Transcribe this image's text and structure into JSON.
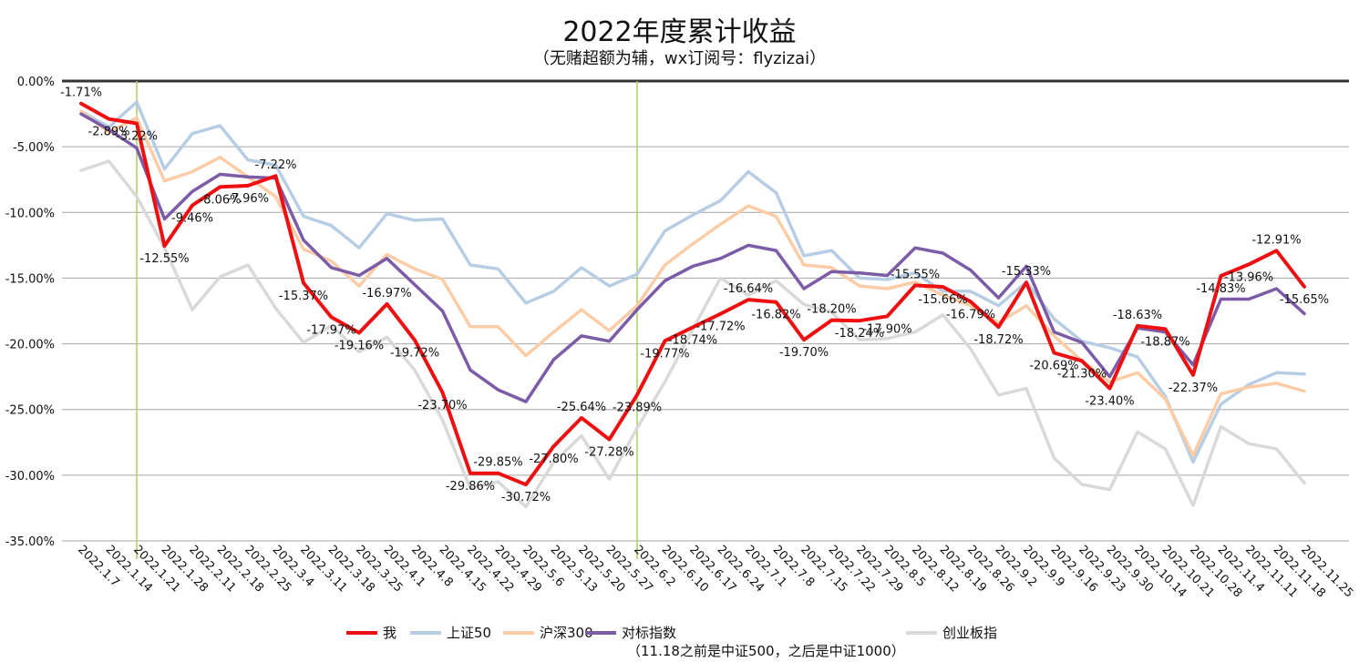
{
  "title": "2022年度累计收益",
  "subtitle": "（无赌超额为辅，wx订阅号：flyzizai）",
  "legend_note": "（11.18之前是中证500，之后是中证1000）",
  "chart_data": {
    "type": "line",
    "title": "2022年度累计收益",
    "subtitle": "（无赌超额为辅，wx订阅号：flyzizai）",
    "categories": [
      "2022.1.7",
      "2022.1.14",
      "2022.1.21",
      "2022.1.28",
      "2022.2.11",
      "2022.2.18",
      "2022.2.25",
      "2022.3.4",
      "2022.3.11",
      "2022.3.18",
      "2022.3.25",
      "2022.4.1",
      "2022.4.8",
      "2022.4.15",
      "2022.4.22",
      "2022.4.29",
      "2022.5.6",
      "2022.5.13",
      "2022.5.20",
      "2022.5.27",
      "2022.6.2",
      "2022.6.10",
      "2022.6.17",
      "2022.6.24",
      "2022.7.1",
      "2022.7.8",
      "2022.7.15",
      "2022.7.22",
      "2022.7.29",
      "2022.8.5",
      "2022.8.12",
      "2022.8.19",
      "2022.8.26",
      "2022.9.2",
      "2022.9.9",
      "2022.9.16",
      "2022.9.23",
      "2022.9.30",
      "2022.10.14",
      "2022.10.21",
      "2022.10.28",
      "2022.11.4",
      "2022.11.11",
      "2022.11.18",
      "2022.11.25"
    ],
    "y_ticks": [
      "0.00%",
      "-5.00%",
      "-10.00%",
      "-15.00%",
      "-20.00%",
      "-25.00%",
      "-30.00%",
      "-35.00%"
    ],
    "ylim": [
      -35,
      0
    ],
    "markers": [
      {
        "x_index": 2,
        "color": "#a8d060"
      },
      {
        "x_index": 20,
        "color": "#a8d060"
      }
    ],
    "series": [
      {
        "name": "创业板指",
        "color": "#d9d9d9",
        "width": 3.5,
        "values": [
          -6.8,
          -6.1,
          -8.8,
          -12.7,
          -17.4,
          -14.9,
          -14.0,
          -17.3,
          -19.9,
          -18.6,
          -20.6,
          -19.5,
          -22.0,
          -25.8,
          -31.0,
          -30.5,
          -32.4,
          -29.0,
          -27.0,
          -30.3,
          -26.4,
          -22.9,
          -18.9,
          -15.0,
          -16.3,
          -15.2,
          -17.0,
          -17.6,
          -19.7,
          -19.6,
          -19.1,
          -17.8,
          -20.4,
          -23.9,
          -23.4,
          -28.7,
          -30.7,
          -31.1,
          -26.7,
          -28.0,
          -32.3,
          -26.3,
          -27.6,
          -28.0,
          -30.6
        ]
      },
      {
        "name": "上证50",
        "color": "#b7cde4",
        "width": 3.5,
        "values": [
          -2.3,
          -3.5,
          -1.6,
          -6.7,
          -4.0,
          -3.4,
          -6.0,
          -6.4,
          -10.3,
          -11.0,
          -12.7,
          -10.1,
          -10.6,
          -10.5,
          -14.0,
          -14.3,
          -16.9,
          -16.0,
          -14.2,
          -15.6,
          -14.7,
          -11.4,
          -10.2,
          -9.1,
          -6.9,
          -8.5,
          -13.3,
          -12.9,
          -15.0,
          -15.1,
          -14.6,
          -16.0,
          -16.0,
          -17.1,
          -15.3,
          -18.1,
          -19.8,
          -20.3,
          -21.0,
          -24.0,
          -29.0,
          -24.6,
          -23.1,
          -22.2,
          -22.3
        ]
      },
      {
        "name": "沪深300",
        "color": "#fbcca6",
        "width": 3.5,
        "values": [
          -2.3,
          -3.9,
          -2.8,
          -7.6,
          -6.9,
          -5.8,
          -7.3,
          -8.8,
          -12.8,
          -13.7,
          -15.6,
          -13.2,
          -14.3,
          -15.1,
          -18.7,
          -18.7,
          -20.9,
          -19.1,
          -17.4,
          -19.0,
          -17.1,
          -14.0,
          -12.4,
          -10.9,
          -9.5,
          -10.3,
          -14.0,
          -14.2,
          -15.6,
          -15.8,
          -15.3,
          -16.3,
          -17.1,
          -18.4,
          -17.1,
          -19.4,
          -21.3,
          -22.9,
          -22.2,
          -24.2,
          -28.5,
          -23.8,
          -23.3,
          -23.0,
          -23.6
        ]
      },
      {
        "name": "对标指数",
        "color": "#7c5ca6",
        "width": 3.5,
        "values": [
          -2.5,
          -3.7,
          -5.1,
          -10.5,
          -8.4,
          -7.1,
          -7.3,
          -7.4,
          -12.1,
          -14.2,
          -14.8,
          -13.5,
          -15.5,
          -17.5,
          -22.0,
          -23.5,
          -24.4,
          -21.2,
          -19.4,
          -19.8,
          -17.4,
          -15.2,
          -14.1,
          -13.5,
          -12.5,
          -12.9,
          -15.8,
          -14.5,
          -14.6,
          -14.8,
          -12.7,
          -13.1,
          -14.4,
          -16.5,
          -14.1,
          -19.1,
          -19.9,
          -22.5,
          -18.8,
          -19.1,
          -21.6,
          -16.6,
          -16.6,
          -15.8,
          -17.7
        ]
      },
      {
        "name": "我",
        "color": "#ee1010",
        "width": 4,
        "values": [
          -1.71,
          -2.89,
          -3.22,
          -12.55,
          -9.46,
          -8.06,
          -7.96,
          -7.22,
          -15.37,
          -17.97,
          -19.16,
          -16.97,
          -19.72,
          -23.7,
          -29.86,
          -29.85,
          -30.72,
          -27.8,
          -25.64,
          -27.28,
          -23.89,
          -19.77,
          -18.74,
          -17.72,
          -16.64,
          -16.82,
          -19.7,
          -18.2,
          -18.24,
          -17.9,
          -15.55,
          -15.66,
          -16.79,
          -18.72,
          -15.33,
          -20.69,
          -21.3,
          -23.4,
          -18.63,
          -18.87,
          -22.37,
          -14.83,
          -13.96,
          -12.91,
          -15.65
        ],
        "data_labels": [
          "-1.71%",
          "-2.89%",
          "-3.22%",
          "-12.55%",
          "-9.46%",
          "-8.06%",
          "-7.96%",
          "-7.22%",
          "-15.37%",
          "-17.97%",
          "-19.16%",
          "-16.97%",
          "-19.72%",
          "-23.70%",
          "-29.86%",
          "-29.85%",
          "-30.72%",
          "-27.80%",
          "-25.64%",
          "-27.28%",
          "-23.89%",
          "-19.77%",
          "-18.74%",
          "-17.72%",
          "-16.64%",
          "-16.82%",
          "-19.70%",
          "-18.20%",
          "-18.24%",
          "-17.90%",
          "-15.55%",
          "-15.66%",
          "-16.79%",
          "-18.72%",
          "-15.33%",
          "-20.69%",
          "-21.30%",
          "-23.40%",
          "-18.63%",
          "-18.87%",
          "-22.37%",
          "-14.83%",
          "-13.96%",
          "-12.91%",
          "-15.65%"
        ]
      }
    ],
    "legend": [
      {
        "name": "我",
        "color": "#ee1010"
      },
      {
        "name": "上证50",
        "color": "#b7cde4"
      },
      {
        "name": "沪深300",
        "color": "#fbcca6"
      },
      {
        "name": "对标指数",
        "color": "#7c5ca6"
      },
      {
        "name": "创业板指",
        "color": "#d9d9d9"
      }
    ],
    "grid": true,
    "legend_position": "bottom"
  }
}
